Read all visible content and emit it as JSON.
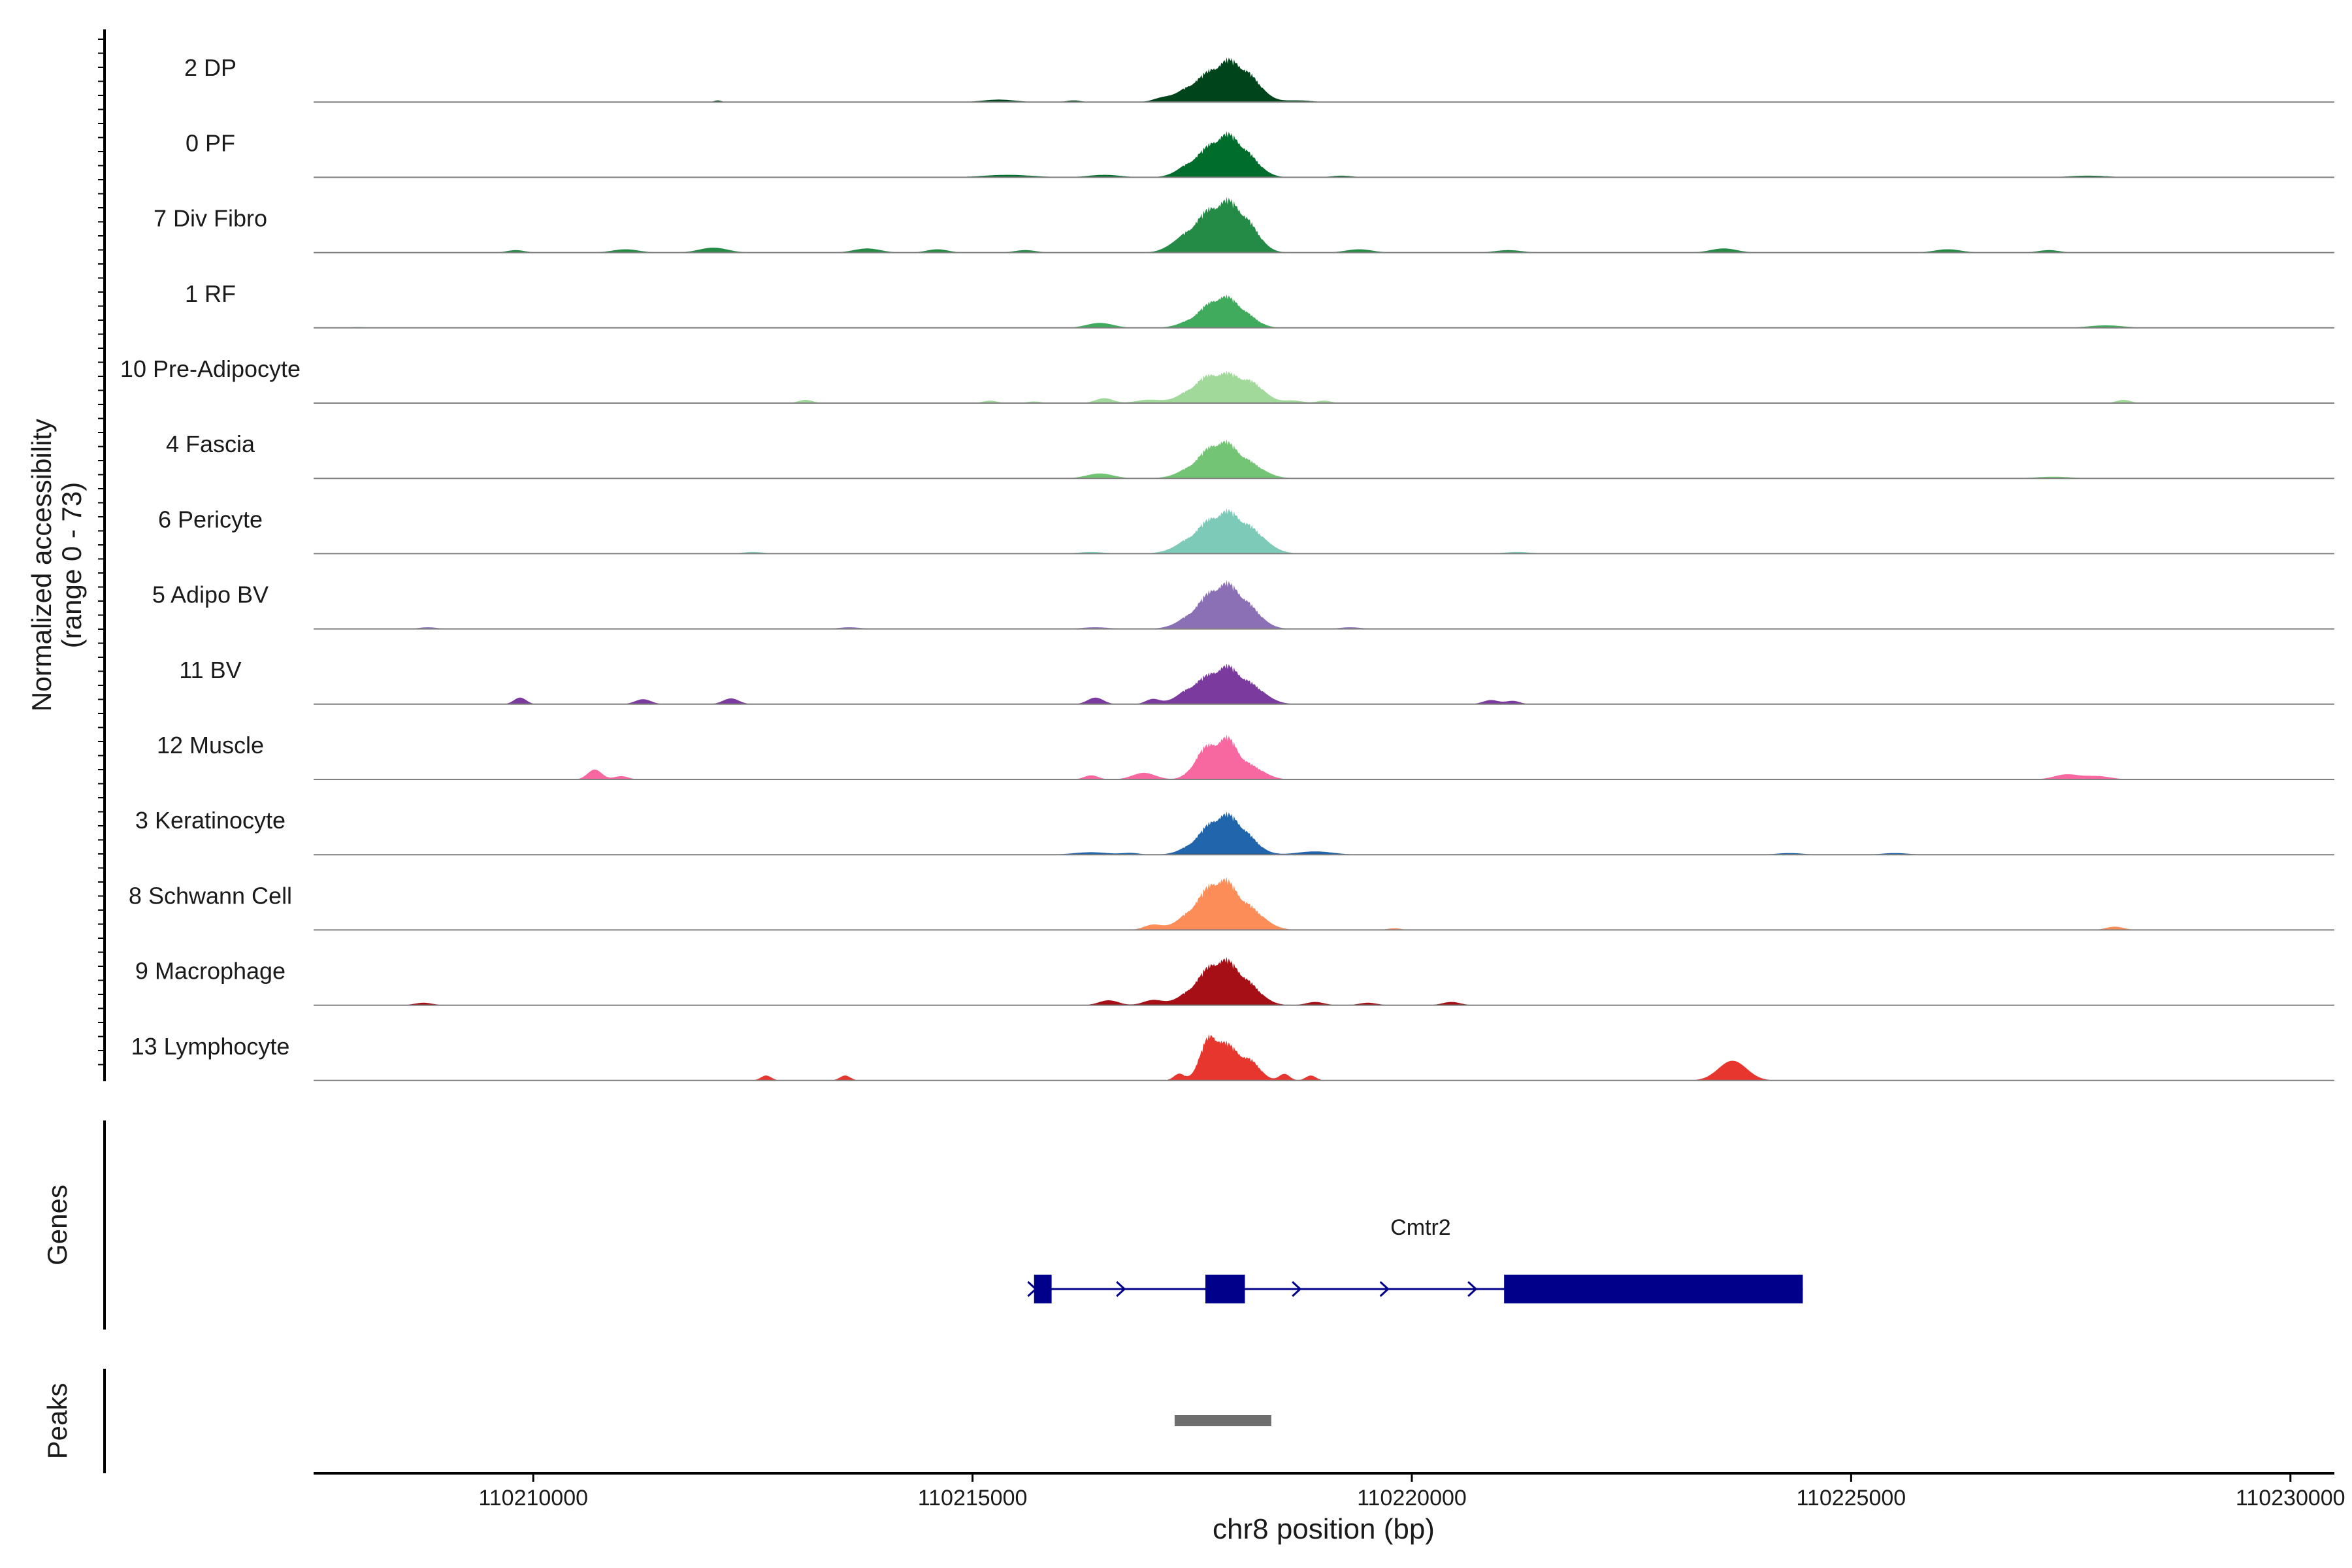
{
  "chart_data": {
    "type": "area",
    "xlabel": "chr8 position (bp)",
    "ylabel_line1": "Normalized accessibility",
    "ylabel_line2": "(range 0 - 73)",
    "y_range": [
      0,
      73
    ],
    "xlim": [
      110207500,
      110230500
    ],
    "x_ticks": [
      {
        "value": 110210000,
        "label": "110210000"
      },
      {
        "value": 110215000,
        "label": "110215000"
      },
      {
        "value": 110220000,
        "label": "110220000"
      },
      {
        "value": 110225000,
        "label": "110225000"
      },
      {
        "value": 110230000,
        "label": "110230000"
      }
    ],
    "series": [
      {
        "name": "2 DP",
        "color": "#00441b",
        "peaks": [
          [
            110217500,
            16,
            170
          ],
          [
            110217870,
            46,
            200
          ],
          [
            110218150,
            20,
            160
          ]
        ],
        "blips": [
          [
            110212100,
            2,
            40
          ],
          [
            110215300,
            3,
            180
          ],
          [
            110216150,
            2,
            80
          ],
          [
            110217150,
            4,
            100
          ],
          [
            110218700,
            2,
            150
          ]
        ]
      },
      {
        "name": "0 PF",
        "color": "#006d2c",
        "peaks": [
          [
            110217500,
            14,
            160
          ],
          [
            110217850,
            48,
            190
          ],
          [
            110218120,
            18,
            160
          ]
        ],
        "blips": [
          [
            110215400,
            3,
            280
          ],
          [
            110216500,
            3,
            180
          ],
          [
            110219200,
            2,
            120
          ],
          [
            110227700,
            2,
            220
          ]
        ]
      },
      {
        "name": "7 Div Fibro",
        "color": "#238b45",
        "peaks": [
          [
            110217580,
            30,
            180
          ],
          [
            110217880,
            52,
            180
          ],
          [
            110218130,
            24,
            150
          ]
        ],
        "blips": [
          [
            110209800,
            3,
            100
          ],
          [
            110211050,
            4,
            150
          ],
          [
            110212050,
            6,
            160
          ],
          [
            110213800,
            5,
            150
          ],
          [
            110214600,
            4,
            120
          ],
          [
            110215600,
            3,
            120
          ],
          [
            110217300,
            5,
            130
          ],
          [
            110219400,
            4,
            150
          ],
          [
            110221100,
            3,
            150
          ],
          [
            110223550,
            5,
            150
          ],
          [
            110226100,
            4,
            150
          ],
          [
            110227250,
            3,
            120
          ]
        ]
      },
      {
        "name": "1 RF",
        "color": "#41ab5d",
        "peaks": [
          [
            110217580,
            10,
            180
          ],
          [
            110217850,
            34,
            180
          ],
          [
            110218100,
            10,
            150
          ]
        ],
        "blips": [
          [
            110216450,
            6,
            150
          ],
          [
            110227900,
            3,
            200
          ],
          [
            110208000,
            1,
            90
          ]
        ]
      },
      {
        "name": "10 Pre-Adipocyte",
        "color": "#a1d99b",
        "peaks": [
          [
            110217600,
            18,
            200
          ],
          [
            110217900,
            30,
            220
          ],
          [
            110218200,
            14,
            150
          ]
        ],
        "blips": [
          [
            110213100,
            4,
            80
          ],
          [
            110215200,
            3,
            80
          ],
          [
            110215700,
            2,
            80
          ],
          [
            110216500,
            6,
            100
          ],
          [
            110217000,
            4,
            140
          ],
          [
            110218650,
            3,
            110
          ],
          [
            110219000,
            3,
            80
          ],
          [
            110228100,
            4,
            80
          ]
        ]
      },
      {
        "name": "4 Fascia",
        "color": "#74c476",
        "peaks": [
          [
            110217600,
            16,
            200
          ],
          [
            110217850,
            36,
            180
          ],
          [
            110218150,
            14,
            180
          ]
        ],
        "blips": [
          [
            110216450,
            6,
            150
          ],
          [
            110227300,
            2,
            200
          ]
        ]
      },
      {
        "name": "6 Pericyte",
        "color": "#7dcab8",
        "peaks": [
          [
            110217600,
            22,
            220
          ],
          [
            110217900,
            40,
            200
          ],
          [
            110218200,
            18,
            180
          ]
        ],
        "blips": [
          [
            110212500,
            2,
            120
          ],
          [
            110216350,
            2,
            150
          ],
          [
            110221200,
            2,
            150
          ]
        ]
      },
      {
        "name": "5 Adipo BV",
        "color": "#8c70b6",
        "peaks": [
          [
            110217600,
            20,
            200
          ],
          [
            110217880,
            46,
            190
          ],
          [
            110218150,
            16,
            160
          ]
        ],
        "blips": [
          [
            110216400,
            2,
            150
          ],
          [
            110208800,
            2,
            100
          ],
          [
            110213600,
            2,
            120
          ],
          [
            110219300,
            2,
            120
          ]
        ]
      },
      {
        "name": "11 BV",
        "color": "#7b3a9e",
        "peaks": [
          [
            110217550,
            22,
            180
          ],
          [
            110217880,
            40,
            170
          ],
          [
            110218180,
            18,
            170
          ]
        ],
        "blips": [
          [
            110209850,
            8,
            70
          ],
          [
            110211250,
            6,
            90
          ],
          [
            110212250,
            7,
            90
          ],
          [
            110216400,
            8,
            90
          ],
          [
            110217050,
            6,
            80
          ],
          [
            110220900,
            5,
            90
          ],
          [
            110221150,
            4,
            80
          ]
        ]
      },
      {
        "name": "12 Muscle",
        "color": "#f768a1",
        "peaks": [
          [
            110217650,
            36,
            130
          ],
          [
            110217900,
            42,
            120
          ],
          [
            110218150,
            16,
            160
          ]
        ],
        "blips": [
          [
            110210700,
            12,
            80
          ],
          [
            110211000,
            4,
            80
          ],
          [
            110216350,
            5,
            80
          ],
          [
            110216950,
            8,
            130
          ],
          [
            110227450,
            6,
            140
          ],
          [
            110227800,
            4,
            150
          ]
        ]
      },
      {
        "name": "3 Keratinocyte",
        "color": "#2166ac",
        "peaks": [
          [
            110217600,
            12,
            180
          ],
          [
            110217860,
            42,
            190
          ],
          [
            110218100,
            14,
            160
          ]
        ],
        "blips": [
          [
            110216350,
            3,
            200
          ],
          [
            110218900,
            4,
            200
          ],
          [
            110216800,
            2,
            100
          ],
          [
            110224300,
            2,
            150
          ],
          [
            110225500,
            2,
            150
          ]
        ]
      },
      {
        "name": "8 Schwann Cell",
        "color": "#fc8d59",
        "peaks": [
          [
            110217600,
            28,
            200
          ],
          [
            110217850,
            46,
            170
          ],
          [
            110218150,
            22,
            180
          ]
        ],
        "blips": [
          [
            110217050,
            6,
            100
          ],
          [
            110228000,
            4,
            100
          ],
          [
            110219800,
            2,
            80
          ]
        ]
      },
      {
        "name": "9 Macrophage",
        "color": "#a50f15",
        "peaks": [
          [
            110217600,
            20,
            200
          ],
          [
            110217860,
            46,
            190
          ],
          [
            110218150,
            16,
            160
          ]
        ],
        "blips": [
          [
            110208750,
            3,
            100
          ],
          [
            110216550,
            6,
            110
          ],
          [
            110217050,
            6,
            110
          ],
          [
            110218900,
            4,
            100
          ],
          [
            110219500,
            3,
            100
          ],
          [
            110220450,
            4,
            100
          ]
        ]
      },
      {
        "name": "13 Lymphocyte",
        "color": "#e6362e",
        "peaks": [
          [
            110217700,
            52,
            110
          ],
          [
            110217920,
            34,
            110
          ],
          [
            110218150,
            24,
            120
          ]
        ],
        "blips": [
          [
            110212650,
            6,
            60
          ],
          [
            110213550,
            6,
            60
          ],
          [
            110217350,
            8,
            60
          ],
          [
            110218550,
            8,
            60
          ],
          [
            110218850,
            6,
            60
          ],
          [
            110223650,
            24,
            160
          ]
        ]
      }
    ],
    "genes": {
      "title": "Genes",
      "name": "Cmtr2",
      "strand": "+",
      "start": 110215700,
      "end": 110224450,
      "exons": [
        [
          110215700,
          110215900
        ],
        [
          110217650,
          110218100
        ],
        [
          110221050,
          110224450
        ]
      ]
    },
    "peaks_track": {
      "title": "Peaks",
      "regions": [
        [
          110217300,
          110218400
        ]
      ]
    },
    "colors": {
      "axis": "#000000",
      "baseline": "#7f7f7f",
      "gene": "#00008b",
      "peak_region": "#6e6e6e"
    }
  }
}
